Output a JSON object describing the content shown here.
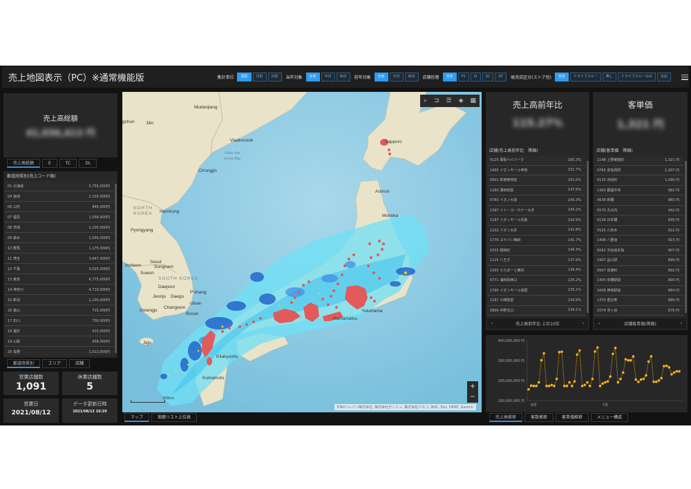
{
  "header": {
    "title": "売上地図表示（PC）※通常機能版",
    "filters": [
      {
        "label": "集計単位",
        "options": [
          "週別",
          "月別",
          "日別"
        ],
        "active": 0
      },
      {
        "label": "当年対象",
        "options": [
          "全体",
          "平日",
          "休日"
        ],
        "active": 0
      },
      {
        "label": "前年対象",
        "options": [
          "全体",
          "平日",
          "休日"
        ],
        "active": 0
      },
      {
        "label": "店舗形態",
        "options": [
          "全体",
          "FS",
          "IS",
          "SC",
          "DT"
        ],
        "active": 0
      },
      {
        "label": "販売店区分(ストア別)",
        "options": [
          "全体",
          "ドライブスルー",
          "無し",
          "ドライブスルーのみ",
          "全店"
        ],
        "active": 0
      }
    ]
  },
  "left": {
    "kpi": {
      "title": "売上高総額",
      "value": "41,036,413 円"
    },
    "tabs": [
      "売上高総額",
      "E",
      "TC",
      "DL"
    ],
    "list": {
      "header": "都道府県別(売上コード順)",
      "rows": [
        [
          "01 北海道",
          "2,755,000円"
        ],
        [
          "04 宮城",
          "2,156,000円"
        ],
        [
          "06 山形",
          "846,000円"
        ],
        [
          "07 福島",
          "1,058,000円"
        ],
        [
          "08 茨城",
          "2,105,000円"
        ],
        [
          "09 栃木",
          "1,556,000円"
        ],
        [
          "10 群馬",
          "1,175,000円"
        ],
        [
          "11 埼玉",
          "3,647,000円"
        ],
        [
          "12 千葉",
          "3,025,000円"
        ],
        [
          "13 東京",
          "6,775,000円"
        ],
        [
          "14 神奈川",
          "4,719,000円"
        ],
        [
          "15 新潟",
          "1,100,000円"
        ],
        [
          "16 富山",
          "715,000円"
        ],
        [
          "17 石川",
          "730,000円"
        ],
        [
          "18 福井",
          "415,000円"
        ],
        [
          "19 山梨",
          "458,000円"
        ],
        [
          "20 長野",
          "1,012,000円"
        ]
      ]
    },
    "tabs2": [
      "都道府県別",
      "エリア",
      "店舗"
    ],
    "stats": [
      {
        "label": "営業店舗数",
        "value": "1,091"
      },
      {
        "label": "休業店舗数",
        "value": "5"
      },
      {
        "label": "営業日",
        "value": "2021/08/12"
      },
      {
        "label": "データ更新日時",
        "value": "2021/08/13 10:29"
      }
    ]
  },
  "map": {
    "labels": {
      "jilin": "Jilin",
      "chun": "gchun",
      "mudanjiang": "Mudanjiang",
      "vladivostok": "Vladivostok",
      "bay1": "Peter the",
      "bay2": "Great Bay",
      "chongjin": "Ch'ongjin",
      "nk1": "NORTH",
      "nk2": "KOREA",
      "hamhung": "Hamhung",
      "pyongyang": "Pyongyang",
      "seoul": "Seoul",
      "incheon": "Incheon",
      "songnam": "Songnam",
      "suwon": "Suwon",
      "sk": "SOUTH KOREA",
      "daejeon": "Daejeon",
      "jeonju": "Jeonju",
      "daegu": "Daegu",
      "pohang": "P'ohang",
      "ulsan": "Ulsan",
      "changwon": "Changwon",
      "gwangju": "Gwangju",
      "busan": "Busan",
      "jeju": "Jeju",
      "sapporo": "Sapporo",
      "aomori": "Aomori",
      "morioka": "Morioka",
      "yokohama": "Yokohama",
      "hamamatsu": "Hamamatsu",
      "kitakyushu": "Kitakyushu",
      "kumamoto": "Kumamoto"
    },
    "scale": "200km",
    "attribution": "ESRIジャパン株式会社, 株式会社ゼンリン, 株式会社パスコ, NHC, Esri, HERE, Garmin",
    "tools": [
      "search-icon",
      "bookmark-icon",
      "legend-icon",
      "layers-icon",
      "basemap-icon"
    ],
    "zoom_in": "+",
    "zoom_out": "−",
    "colors": {
      "sea": "#8fcbe3",
      "land": "#e9e4c9",
      "rain_light": "#6fe0f5",
      "rain_heavy": "#1f5fc8",
      "stores": "#e25a5a"
    }
  },
  "map_tabs": [
    "マップ",
    "実績リスト上位表"
  ],
  "right": {
    "yoy": {
      "title": "売上高前年比",
      "value": "115.27%",
      "list_header": "店舗(売上高前年比　降順)",
      "rows": [
        [
          "0125 幕張ベイパーク",
          "165.3%"
        ],
        [
          "1405 イオンモール甲府",
          "151.7%"
        ],
        [
          "0901 新宿御苑前",
          "151.0%"
        ],
        [
          "1260 蒲田駅前",
          "147.6%"
        ],
        [
          "0783 イオン大高",
          "145.3%"
        ],
        [
          "1367 イトーヨーカドー大井",
          "143.2%"
        ],
        [
          "1187 イオンモール名取",
          "142.9%"
        ],
        [
          "1102 イオン大井",
          "141.8%"
        ],
        [
          "1776 ヨドバシ梅田",
          "141.7%"
        ],
        [
          "0335 昭和町",
          "140.3%"
        ],
        [
          "1125 八王子",
          "137.9%"
        ],
        [
          "1435 ららぽーと横浜",
          "136.4%"
        ],
        [
          "0771 浦和駅西口",
          "135.2%"
        ],
        [
          "1795 イオンモール高岡",
          "135.1%"
        ],
        [
          "1187 川崎駅前",
          "134.9%"
        ],
        [
          "0890 中野北口",
          "134.1%"
        ]
      ],
      "pager": "売上高前年比 上位10位"
    },
    "unit": {
      "title": "客単価",
      "value": "1,321 円",
      "list_header": "店舗(客単価　降順)",
      "rows": [
        [
          "1148 上野御徒町",
          "1,321 円"
        ],
        [
          "0765 赤坂見附",
          "1,207 円"
        ],
        [
          "0135 浜松町",
          "1,090 円"
        ],
        [
          "1403 銀座中央",
          "982 円"
        ],
        [
          "0638 新橋",
          "965 円"
        ],
        [
          "0570 丸の内",
          "942 円"
        ],
        [
          "0134 日本橋",
          "935 円"
        ],
        [
          "0525 六本木",
          "922 円"
        ],
        [
          "1408 八重洲",
          "915 円"
        ],
        [
          "0062 渋谷道玄坂",
          "907 円"
        ],
        [
          "1907 品川駅",
          "899 円"
        ],
        [
          "0567 有楽町",
          "892 円"
        ],
        [
          "1405 京橋駅前",
          "890 円"
        ],
        [
          "1606 神田駅前",
          "884 円"
        ],
        [
          "1370 恵比寿",
          "880 円"
        ],
        [
          "1074 市ヶ谷",
          "876 円"
        ]
      ],
      "pager": "店舗客単価(降順)"
    }
  },
  "chart_tabs": [
    "売上高推移",
    "客数推移",
    "客単価推移",
    "メニュー構成"
  ],
  "chart_data": {
    "type": "line",
    "color": "#f5b21c",
    "yticks": [
      "400,000,000 円",
      "300,000,000 円",
      "200,000,000 円",
      "100,000,000 円"
    ],
    "ylim": [
      100000000,
      400000000
    ],
    "x_ticks": [
      {
        "label": "6月",
        "index": 2
      },
      {
        "label": "7月",
        "index": 30
      }
    ],
    "values": [
      156000000,
      175000000,
      173000000,
      173000000,
      191000000,
      301000000,
      336000000,
      173000000,
      173000000,
      178000000,
      173000000,
      208000000,
      342000000,
      344000000,
      173000000,
      173000000,
      191000000,
      173000000,
      196000000,
      330000000,
      350000000,
      173000000,
      178000000,
      191000000,
      173000000,
      208000000,
      345000000,
      365000000,
      173000000,
      185000000,
      191000000,
      196000000,
      220000000,
      333000000,
      363000000,
      191000000,
      208000000,
      240000000,
      306000000,
      301000000,
      301000000,
      321000000,
      205000000,
      193000000,
      205000000,
      208000000,
      226000000,
      295000000,
      321000000,
      194000000,
      194000000,
      200000000,
      212000000,
      272000000,
      274000000,
      266000000,
      231000000,
      240000000,
      246000000,
      246000000
    ]
  }
}
